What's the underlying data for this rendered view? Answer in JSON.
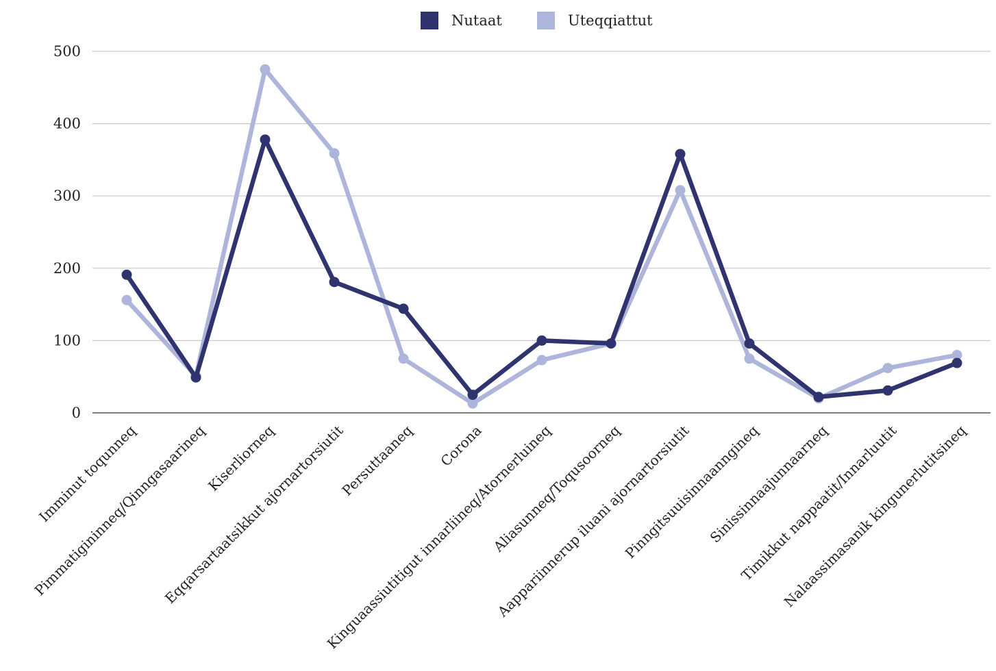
{
  "chart_data": {
    "type": "line",
    "title": "",
    "xlabel": "",
    "ylabel": "",
    "ylim": [
      0,
      500
    ],
    "yticks": [
      "0",
      "100",
      "200",
      "300",
      "400",
      "500"
    ],
    "grid": true,
    "legend_position": "top-center",
    "categories": [
      "Imminut toqunneq",
      "Pimmatigininneq/Qinngasaarineq",
      "Kiserliorneq",
      "Eqqarsartaatsikkut ajornartorsiutit",
      "Persuttaaneq",
      "Corona",
      "Kinguaassiutitigut innarliineq/Atornerluineq",
      "Aliasunneq/Toqusoorneq",
      "Aappariinnerup iluani ajornartorsiutit",
      "Pinngitsuuisinnaanngineq",
      "Sinissinnaajunnaarneq",
      "Timikkut nappaatit/Innarluutit",
      "Nalaassimasanik kingunerlutitsineq"
    ],
    "series": [
      {
        "name": "Nutaat",
        "color": "#2f346e",
        "values": [
          191,
          49,
          378,
          181,
          144,
          25,
          100,
          96,
          358,
          96,
          22,
          31,
          69
        ]
      },
      {
        "name": "Uteqqiattut",
        "color": "#adb5db",
        "values": [
          156,
          51,
          475,
          359,
          75,
          13,
          73,
          96,
          308,
          75,
          20,
          62,
          80
        ]
      }
    ]
  },
  "colors": {
    "grid": "#c8c8c8",
    "axis": "#555555"
  }
}
